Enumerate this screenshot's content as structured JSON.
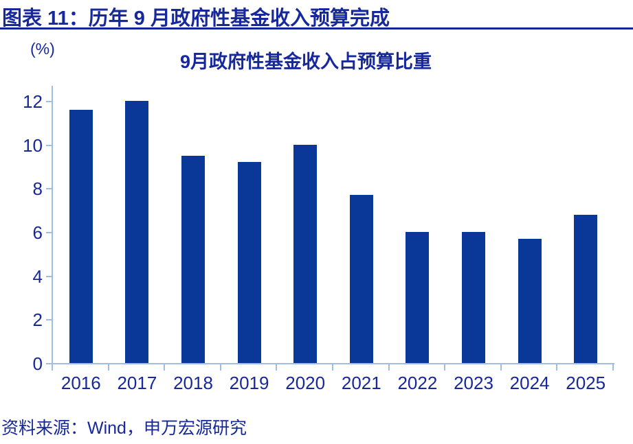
{
  "header": {
    "title": "图表 11：历年 9 月政府性基金收入预算完成"
  },
  "footer": {
    "source": "资料来源：Wind，申万宏源研究"
  },
  "chart_data": {
    "type": "bar",
    "title": "9月政府性基金收入占预算比重",
    "unit_label": "(%)",
    "xlabel": "",
    "ylabel": "(%)",
    "categories": [
      "2016",
      "2017",
      "2018",
      "2019",
      "2020",
      "2021",
      "2022",
      "2023",
      "2024",
      "2025"
    ],
    "values": [
      11.6,
      12.0,
      9.5,
      9.2,
      10.0,
      7.7,
      6.0,
      6.0,
      5.7,
      6.8
    ],
    "yticks": [
      0,
      2,
      4,
      6,
      8,
      10,
      12
    ],
    "ylim": [
      0,
      12.7
    ],
    "grid": false,
    "legend": null,
    "colors": {
      "bar": "#0A3899",
      "axis": "#9FBEE3",
      "text": "#16289B",
      "rule": "#10259B"
    }
  }
}
